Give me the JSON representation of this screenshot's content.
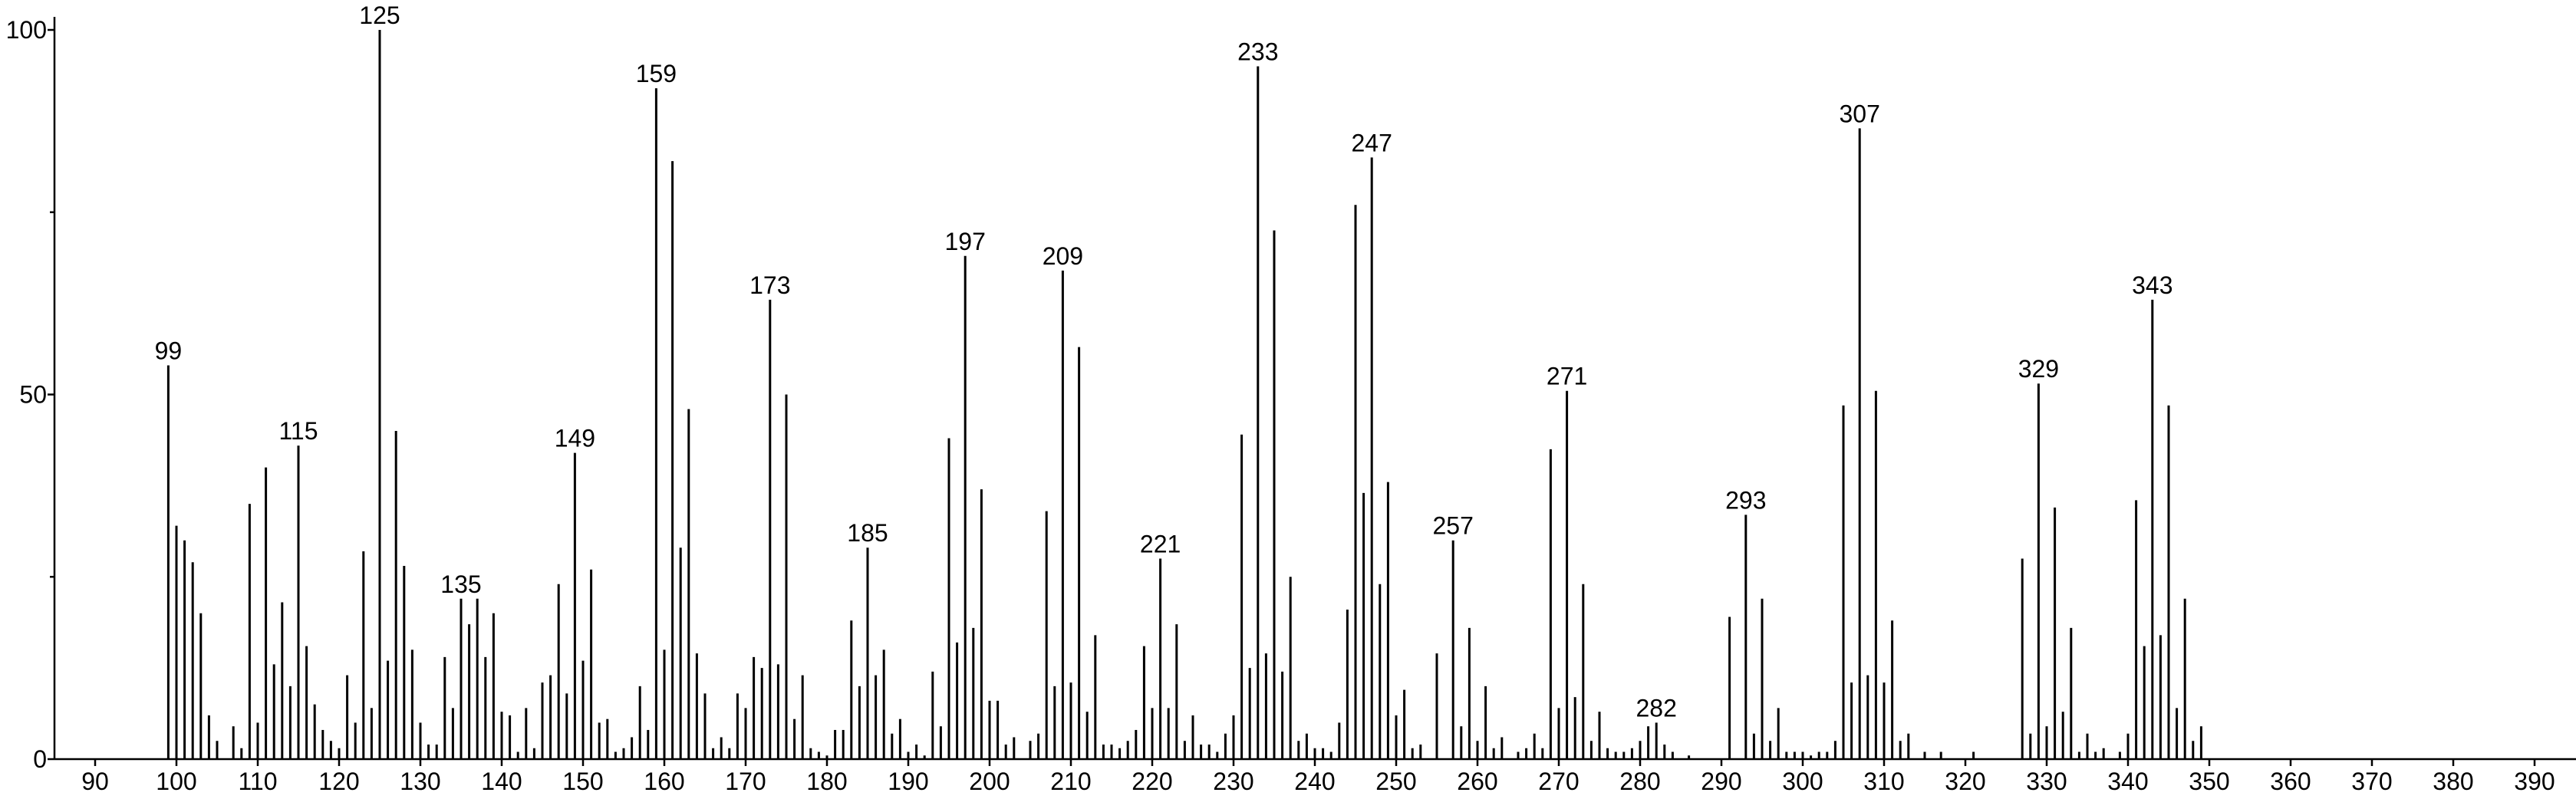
{
  "chart_data": {
    "type": "bar",
    "color": "#000000",
    "x": [
      99,
      100,
      101,
      102,
      103,
      104,
      105,
      107,
      108,
      109,
      110,
      111,
      112,
      113,
      114,
      115,
      116,
      117,
      118,
      119,
      120,
      121,
      122,
      123,
      124,
      125,
      126,
      127,
      128,
      129,
      130,
      131,
      132,
      133,
      134,
      135,
      136,
      137,
      138,
      139,
      140,
      141,
      142,
      143,
      144,
      145,
      146,
      147,
      148,
      149,
      150,
      151,
      152,
      153,
      154,
      155,
      156,
      157,
      158,
      159,
      160,
      161,
      162,
      163,
      164,
      165,
      166,
      167,
      168,
      169,
      170,
      171,
      172,
      173,
      174,
      175,
      176,
      177,
      178,
      179,
      180,
      181,
      182,
      183,
      184,
      185,
      186,
      187,
      188,
      189,
      190,
      191,
      192,
      193,
      194,
      195,
      196,
      197,
      198,
      199,
      200,
      201,
      202,
      203,
      205,
      206,
      207,
      208,
      209,
      210,
      211,
      212,
      213,
      214,
      215,
      216,
      217,
      218,
      219,
      220,
      221,
      222,
      223,
      224,
      225,
      226,
      227,
      228,
      229,
      230,
      231,
      232,
      233,
      234,
      235,
      236,
      237,
      238,
      239,
      240,
      241,
      242,
      243,
      244,
      245,
      246,
      247,
      248,
      249,
      250,
      251,
      252,
      253,
      255,
      257,
      258,
      259,
      260,
      261,
      262,
      263,
      265,
      266,
      267,
      268,
      269,
      270,
      271,
      272,
      273,
      274,
      275,
      276,
      277,
      278,
      279,
      280,
      281,
      282,
      283,
      284,
      286,
      291,
      293,
      294,
      295,
      296,
      297,
      298,
      299,
      300,
      301,
      302,
      303,
      304,
      305,
      306,
      307,
      308,
      309,
      310,
      311,
      312,
      313,
      315,
      317,
      321,
      327,
      328,
      329,
      330,
      331,
      332,
      333,
      334,
      335,
      336,
      337,
      339,
      340,
      341,
      342,
      343,
      344,
      345,
      346,
      347,
      348,
      349
    ],
    "values": [
      54,
      32,
      30,
      27,
      20,
      6,
      2.5,
      4.5,
      1.5,
      35,
      5,
      40,
      13,
      21.5,
      10,
      43,
      15.5,
      7.5,
      4,
      2.5,
      1.5,
      11.5,
      5,
      28.5,
      7,
      100,
      13.5,
      45,
      26.5,
      15,
      5,
      2,
      2,
      14,
      7,
      22,
      18.5,
      22,
      14,
      20,
      6.5,
      6,
      1,
      7,
      1.5,
      10.5,
      11.5,
      24,
      9,
      42,
      13.5,
      26,
      5,
      5.5,
      1,
      1.5,
      3,
      10,
      4,
      92,
      15,
      82,
      29,
      48,
      14.5,
      9,
      1.5,
      3,
      1.5,
      9,
      7,
      14,
      12.5,
      63,
      13,
      50,
      5.5,
      11.5,
      1.5,
      1,
      0.5,
      4,
      4,
      19,
      10,
      29,
      11.5,
      15,
      3.5,
      5.5,
      1,
      2,
      0.5,
      12,
      4.5,
      44,
      16,
      69,
      18,
      37,
      8,
      8,
      2,
      3,
      2.5,
      3.5,
      34,
      10,
      67,
      10.5,
      56.5,
      6.5,
      17,
      2,
      2,
      1.5,
      2.5,
      4,
      15.5,
      7,
      27.5,
      7,
      18.5,
      2.5,
      6,
      2,
      2,
      1,
      3.5,
      6,
      44.5,
      12.5,
      95,
      14.5,
      72.5,
      12,
      25,
      2.5,
      3.5,
      1.5,
      1.5,
      1,
      5,
      20.5,
      76,
      36.5,
      82.5,
      24,
      38,
      6,
      9.5,
      1.5,
      2,
      14.5,
      30,
      4.5,
      18,
      2.5,
      10,
      1.5,
      3,
      1,
      1.5,
      3.5,
      1.5,
      42.5,
      7,
      50.5,
      8.5,
      24,
      2.5,
      6.5,
      1.5,
      1,
      1,
      1.5,
      2.5,
      4.5,
      5,
      2,
      1,
      0.5,
      19.5,
      33.5,
      3.5,
      22,
      2.5,
      7,
      1,
      1,
      1,
      0.5,
      1,
      1,
      2.5,
      48.5,
      10.5,
      86.5,
      11.5,
      50.5,
      10.5,
      19,
      2.5,
      3.5,
      1,
      1,
      1,
      27.5,
      3.5,
      51.5,
      4.5,
      34.5,
      6.5,
      18,
      1,
      3.5,
      1,
      1.5,
      1,
      3.5,
      35.5,
      15.5,
      63,
      17,
      48.5,
      7,
      22,
      2.5,
      4.5
    ],
    "labels": [
      "99",
      null,
      null,
      null,
      null,
      null,
      null,
      null,
      null,
      null,
      null,
      null,
      null,
      null,
      null,
      "115",
      null,
      null,
      null,
      null,
      null,
      null,
      null,
      null,
      null,
      "125",
      null,
      null,
      null,
      null,
      null,
      null,
      null,
      null,
      null,
      "135",
      null,
      null,
      null,
      null,
      null,
      null,
      null,
      null,
      null,
      null,
      null,
      null,
      null,
      "149",
      null,
      null,
      null,
      null,
      null,
      null,
      null,
      null,
      null,
      "159",
      null,
      null,
      null,
      null,
      null,
      null,
      null,
      null,
      null,
      null,
      null,
      null,
      null,
      "173",
      null,
      null,
      null,
      null,
      null,
      null,
      null,
      null,
      null,
      null,
      null,
      "185",
      null,
      null,
      null,
      null,
      null,
      null,
      null,
      null,
      null,
      null,
      null,
      "197",
      null,
      null,
      null,
      null,
      null,
      null,
      null,
      null,
      null,
      null,
      "209",
      null,
      null,
      null,
      null,
      null,
      null,
      null,
      null,
      null,
      null,
      null,
      "221",
      null,
      null,
      null,
      null,
      null,
      null,
      null,
      null,
      null,
      null,
      null,
      "233",
      null,
      null,
      null,
      null,
      null,
      null,
      null,
      null,
      null,
      null,
      null,
      null,
      null,
      "247",
      null,
      null,
      null,
      null,
      null,
      null,
      null,
      "257",
      null,
      null,
      null,
      null,
      null,
      null,
      null,
      null,
      null,
      null,
      null,
      null,
      "271",
      null,
      null,
      null,
      null,
      null,
      null,
      null,
      null,
      null,
      null,
      "282",
      null,
      null,
      null,
      null,
      "293",
      null,
      null,
      null,
      null,
      null,
      null,
      null,
      null,
      null,
      null,
      null,
      null,
      null,
      "307",
      null,
      null,
      null,
      null,
      null,
      null,
      null,
      null,
      null,
      null,
      null,
      "329",
      null,
      null,
      null,
      null,
      null,
      null,
      null,
      null,
      null,
      null,
      null,
      null,
      "343",
      null,
      null,
      null,
      null,
      null,
      null
    ],
    "xlim": [
      85,
      395
    ],
    "xticks": [
      90,
      100,
      110,
      120,
      130,
      140,
      150,
      160,
      170,
      180,
      190,
      200,
      210,
      220,
      230,
      240,
      250,
      260,
      270,
      280,
      290,
      300,
      310,
      320,
      330,
      340,
      350,
      360,
      370,
      380,
      390
    ],
    "ylim": [
      0,
      100
    ],
    "yticks": [
      0,
      50,
      100
    ],
    "yminor": [
      25,
      75
    ]
  }
}
